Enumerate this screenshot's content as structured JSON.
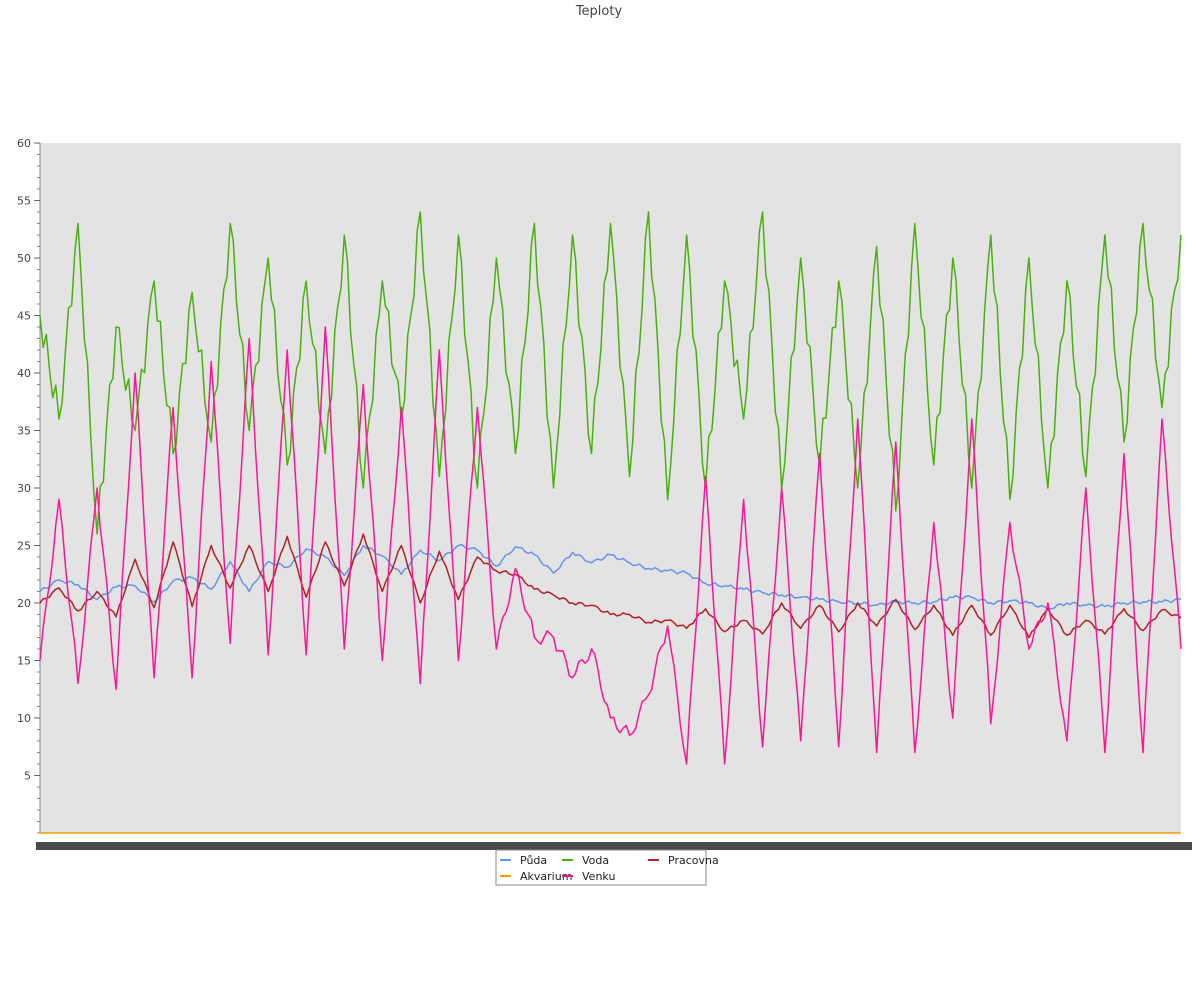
{
  "chart_data": {
    "type": "line",
    "title": "Teploty",
    "xlabel": "",
    "ylabel": "",
    "ylim": [
      0,
      60
    ],
    "yticks": [
      5,
      10,
      15,
      20,
      25,
      30,
      35,
      40,
      45,
      50,
      55,
      60
    ],
    "grid": false,
    "legend_position": "bottom-center",
    "x": [
      0,
      1,
      2,
      3,
      4,
      5,
      6,
      7,
      8,
      9,
      10,
      11,
      12,
      13,
      14,
      15,
      16,
      17,
      18,
      19,
      20,
      21,
      22,
      23,
      24,
      25,
      26,
      27,
      28,
      29,
      30,
      31,
      32,
      33,
      34,
      35,
      36,
      37,
      38,
      39,
      40,
      41,
      42,
      43,
      44,
      45,
      46,
      47,
      48,
      49,
      50,
      51,
      52,
      53,
      54,
      55,
      56,
      57,
      58,
      59,
      60
    ],
    "series": [
      {
        "name": "Půda",
        "color": "#6495ed",
        "values": [
          21.0,
          22.0,
          21.6,
          20.3,
          21.4,
          21.5,
          20.1,
          21.9,
          22.2,
          21.2,
          23.6,
          21.0,
          23.6,
          23.1,
          24.7,
          24.0,
          22.4,
          25.0,
          24.1,
          22.5,
          24.6,
          23.7,
          25.0,
          24.6,
          23.2,
          24.9,
          24.2,
          22.6,
          24.4,
          23.5,
          24.2,
          23.5,
          23.0,
          22.8,
          22.6,
          21.7,
          21.5,
          21.2,
          20.9,
          20.7,
          20.5,
          20.3,
          20.1,
          20.0,
          19.8,
          20.1,
          20.0,
          20.1,
          20.5,
          20.5,
          20.0,
          20.2,
          20.0,
          19.5,
          20.0,
          19.8,
          19.7,
          20.0,
          20.1,
          20.1,
          20.3
        ]
      },
      {
        "name": "Voda",
        "color": "#4caf10",
        "values": [
          45,
          36,
          53,
          26,
          44,
          35,
          48,
          33,
          47,
          34,
          53,
          35,
          50,
          32,
          48,
          33,
          52,
          30,
          48,
          36,
          54,
          31,
          52,
          30,
          50,
          33,
          53,
          30,
          52,
          33,
          53,
          31,
          54,
          29,
          52,
          30,
          48,
          36,
          54,
          30,
          50,
          32,
          48,
          30,
          51,
          28,
          53,
          32,
          50,
          30,
          52,
          29,
          50,
          30,
          48,
          31,
          52,
          34,
          53,
          37,
          52
        ]
      },
      {
        "name": "Pracovna",
        "color": "#b22222",
        "values": [
          20.0,
          21.3,
          19.3,
          21.0,
          18.8,
          23.8,
          19.6,
          25.3,
          19.7,
          25.0,
          21.3,
          25.0,
          21.0,
          25.8,
          20.5,
          25.3,
          21.5,
          26.0,
          21.0,
          25.0,
          20.0,
          24.5,
          20.3,
          24.0,
          22.8,
          22.5,
          21.2,
          20.7,
          20.0,
          19.8,
          19.0,
          19.0,
          18.3,
          18.5,
          17.8,
          19.5,
          17.5,
          18.5,
          17.3,
          20.0,
          17.8,
          19.8,
          17.5,
          20.0,
          18.0,
          20.3,
          17.7,
          19.8,
          17.2,
          19.8,
          17.2,
          19.8,
          17.0,
          19.5,
          17.2,
          18.5,
          17.3,
          19.5,
          17.6,
          19.4,
          18.7
        ]
      },
      {
        "name": "Akvarium",
        "color": "#f0a000",
        "values": [
          0,
          0,
          0,
          0,
          0,
          0,
          0,
          0,
          0,
          0,
          0,
          0,
          0,
          0,
          0,
          0,
          0,
          0,
          0,
          0,
          0,
          0,
          0,
          0,
          0,
          0,
          0,
          0,
          0,
          0,
          0,
          0,
          0,
          0,
          0,
          0,
          0,
          0,
          0,
          0,
          0,
          0,
          0,
          0,
          0,
          0,
          0,
          0,
          0,
          0,
          0,
          0,
          0,
          0,
          0,
          0,
          0,
          0,
          0,
          0,
          0
        ]
      },
      {
        "name": "Venku",
        "color": "#ff1493",
        "values": [
          15,
          29,
          13,
          30,
          12.5,
          40,
          13.5,
          37,
          13.5,
          41,
          16.5,
          43,
          15.5,
          42,
          15.5,
          44,
          16,
          39,
          15,
          37,
          13,
          42,
          15,
          37,
          16,
          23,
          17,
          17,
          13.5,
          16,
          10,
          8.5,
          12,
          18,
          6,
          31,
          6,
          29,
          7.5,
          30,
          8,
          33,
          7.5,
          36,
          7,
          34,
          7,
          27,
          10,
          36,
          9.5,
          27,
          16,
          20,
          8,
          30,
          7,
          33,
          7,
          36,
          16
        ]
      }
    ]
  }
}
